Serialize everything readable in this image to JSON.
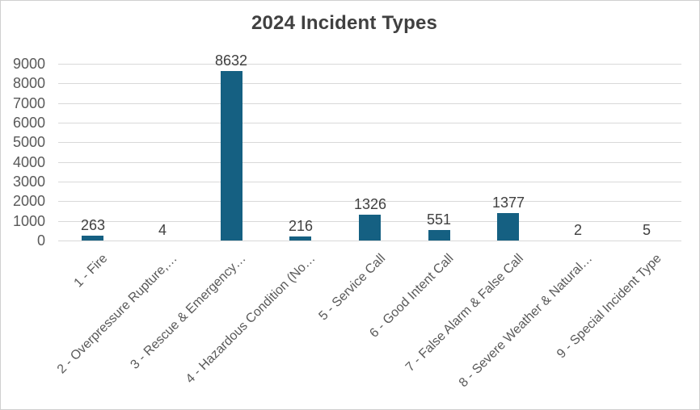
{
  "chart_data": {
    "type": "bar",
    "title": "2024 Incident Types",
    "categories": [
      "1 - Fire",
      "2 - Overpressure Rupture,…",
      "3 - Rescue & Emergency…",
      "4 - Hazardous Condition (No…",
      "5 - Service Call",
      "6 - Good Intent Call",
      "7 - False Alarm & False Call",
      "8 - Severe Weather & Natural…",
      "9 - Special Incident Type"
    ],
    "values": [
      263,
      4,
      8632,
      216,
      1326,
      551,
      1377,
      2,
      5
    ],
    "data_labels": [
      "263",
      "4",
      "8632",
      "216",
      "1326",
      "551",
      "1377",
      "2",
      "5"
    ],
    "xlabel": "",
    "ylabel": "",
    "ylim": [
      0,
      9000
    ],
    "ytick_step": 1000,
    "ytick_labels": [
      "0",
      "1000",
      "2000",
      "3000",
      "4000",
      "5000",
      "6000",
      "7000",
      "8000",
      "9000"
    ],
    "grid": "on",
    "legend": "none",
    "colors": {
      "bar_fill": "#156082",
      "gridline": "#D9D9D9",
      "axis_text": "#595959",
      "data_label_text": "#404040",
      "title_text": "#404040",
      "background": "#FFFFFF",
      "frame_border": "#CFCFCF"
    }
  }
}
